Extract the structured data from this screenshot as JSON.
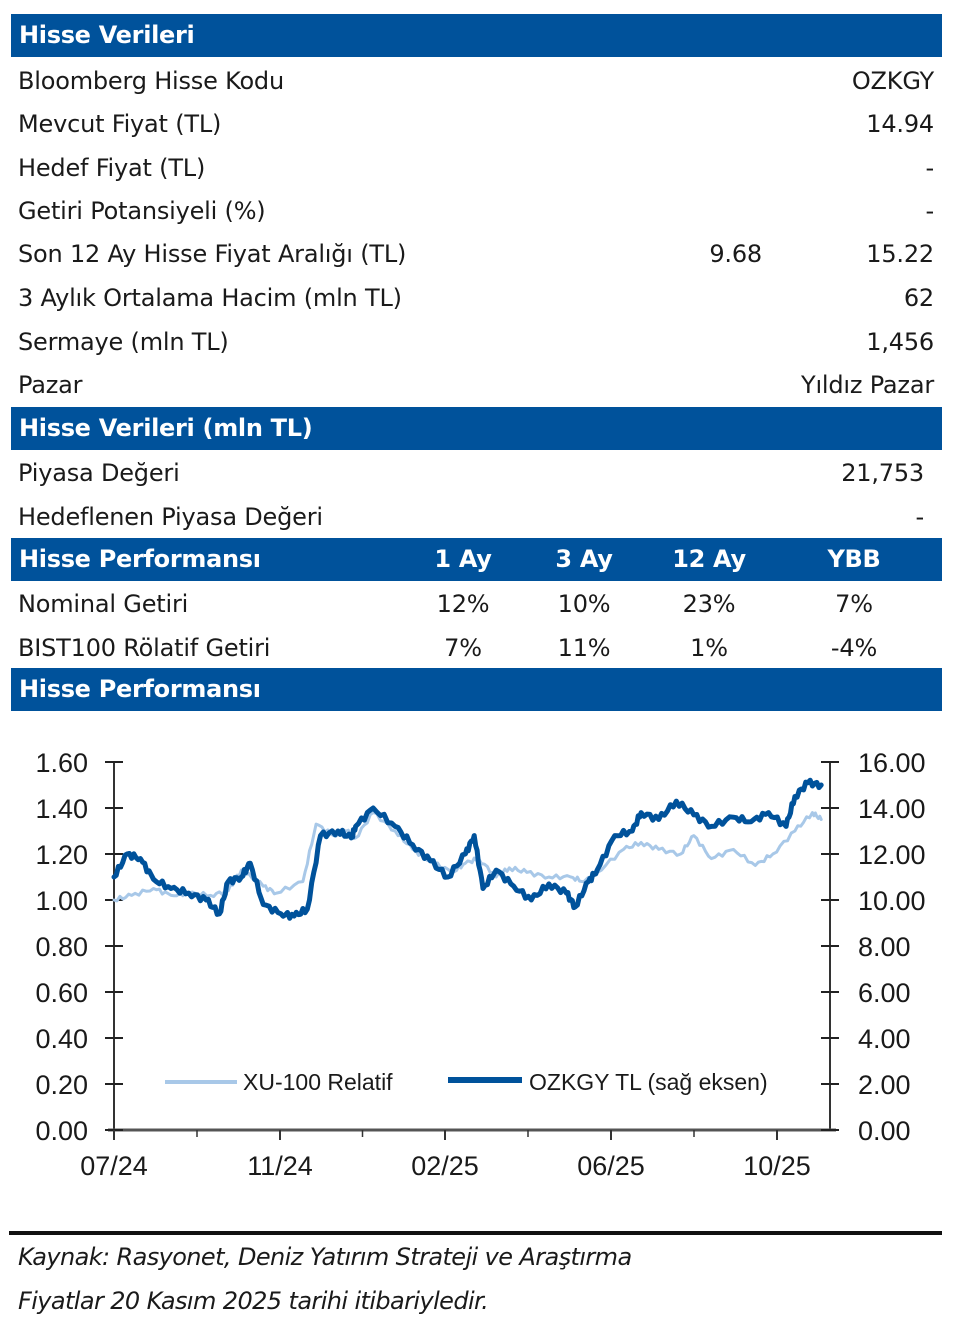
{
  "section1": {
    "title": "Hisse Verileri",
    "rows": [
      {
        "label": "Bloomberg Hisse Kodu",
        "value": "OZKGY"
      },
      {
        "label": "Mevcut Fiyat (TL)",
        "value": "14.94"
      },
      {
        "label": "Hedef Fiyat (TL)",
        "value": "-"
      },
      {
        "label": "Getiri Potansiyeli (%)",
        "value": "-"
      },
      {
        "label": "Son 12 Ay Hisse Fiyat Aralığı (TL)",
        "value_low": "9.68",
        "value": "15.22"
      },
      {
        "label": "3 Aylık Ortalama Hacim (mln TL)",
        "value": "62"
      },
      {
        "label": "Sermaye (mln TL)",
        "value": "1,456"
      },
      {
        "label": "Pazar",
        "value": "Yıldız Pazar"
      }
    ]
  },
  "section2": {
    "title": "Hisse Verileri (mln TL)",
    "rows": [
      {
        "label": "Piyasa Değeri",
        "value": "21,753"
      },
      {
        "label": "Hedeflenen Piyasa Değeri",
        "value": "-"
      }
    ]
  },
  "section3": {
    "title": "Hisse Performansı",
    "columns": [
      "1 Ay",
      "3 Ay",
      "12 Ay",
      "YBB"
    ],
    "rows": [
      {
        "label": "Nominal Getiri",
        "values": [
          "12%",
          "10%",
          "23%",
          "7%"
        ]
      },
      {
        "label": "BIST100 Rölatif Getiri",
        "values": [
          "7%",
          "11%",
          "1%",
          "-4%"
        ]
      }
    ]
  },
  "section4": {
    "title": "Hisse Performansı"
  },
  "colors": {
    "band": "#00529b",
    "ozkgy": "#00529b",
    "relative": "#a8c8e8"
  },
  "chart_data": {
    "type": "line",
    "title": "",
    "xlabel": "",
    "ylabel": "",
    "x_ticks": [
      "07/24",
      "11/24",
      "02/25",
      "06/25",
      "10/25"
    ],
    "y_left": {
      "range": [
        0,
        1.6
      ],
      "ticks": [
        "0.00",
        "0.20",
        "0.40",
        "0.60",
        "0.80",
        "1.00",
        "1.20",
        "1.40",
        "1.60"
      ]
    },
    "y_right": {
      "range": [
        0,
        16
      ],
      "ticks": [
        "0.00",
        "2.00",
        "4.00",
        "6.00",
        "8.00",
        "10.00",
        "12.00",
        "14.00",
        "16.00"
      ]
    },
    "x_range_months": [
      0,
      16.3
    ],
    "legend_position": "bottom-center",
    "series": [
      {
        "name": "XU-100 Relatif",
        "axis": "left",
        "x_months": [
          0,
          0.4,
          0.9,
          1.3,
          1.7,
          2.2,
          2.6,
          2.9,
          3.4,
          3.7,
          4.3,
          4.6,
          5.0,
          5.3,
          5.5,
          5.9,
          6.4,
          6.8,
          7.2,
          7.7,
          8.0,
          8.3,
          8.7,
          9.0,
          9.4,
          9.9,
          10.4,
          10.7,
          11.0,
          11.6,
          12.0,
          12.4,
          12.9,
          13.2,
          13.6,
          14.1,
          14.6,
          15.0,
          15.5,
          15.9,
          16.1
        ],
        "values": [
          1.0,
          1.02,
          1.05,
          1.02,
          1.03,
          1.02,
          1.04,
          1.13,
          1.06,
          1.03,
          1.08,
          1.33,
          1.28,
          1.3,
          1.27,
          1.38,
          1.3,
          1.22,
          1.17,
          1.12,
          1.16,
          1.18,
          1.1,
          1.14,
          1.12,
          1.1,
          1.1,
          1.08,
          1.12,
          1.22,
          1.25,
          1.22,
          1.2,
          1.28,
          1.18,
          1.22,
          1.15,
          1.2,
          1.3,
          1.38,
          1.35
        ]
      },
      {
        "name": "OZKGY TL (sağ eksen)",
        "axis": "right",
        "x_months": [
          0,
          0.3,
          0.6,
          0.9,
          1.3,
          1.7,
          2.1,
          2.4,
          2.6,
          2.9,
          3.1,
          3.4,
          3.8,
          4.1,
          4.4,
          4.7,
          5.1,
          5.4,
          5.5,
          5.9,
          6.4,
          6.8,
          7.2,
          7.6,
          8.0,
          8.2,
          8.4,
          8.7,
          9.1,
          9.5,
          9.9,
          10.3,
          10.5,
          10.8,
          11.0,
          11.4,
          11.8,
          12.0,
          12.4,
          12.8,
          13.2,
          13.6,
          14.1,
          14.5,
          14.9,
          15.3,
          15.5,
          15.8,
          16.1
        ],
        "values": [
          11.0,
          12.0,
          11.8,
          10.9,
          10.5,
          10.3,
          10.0,
          9.4,
          10.8,
          11.0,
          11.6,
          9.8,
          9.4,
          9.3,
          9.6,
          12.8,
          13.0,
          12.7,
          13.2,
          14.0,
          13.2,
          12.4,
          11.7,
          11.0,
          12.0,
          12.8,
          10.5,
          11.3,
          10.6,
          10.0,
          10.7,
          10.3,
          9.7,
          10.8,
          11.3,
          12.8,
          13.0,
          13.8,
          13.5,
          14.3,
          13.7,
          13.2,
          13.6,
          13.4,
          13.8,
          13.2,
          14.5,
          15.1,
          15.0
        ]
      }
    ]
  },
  "footer": {
    "source": "Kaynak: Rasyonet, Deniz Yatırım Strateji ve Araştırma",
    "date_note": "Fiyatlar 20 Kasım 2025 tarihi itibariyledir."
  }
}
